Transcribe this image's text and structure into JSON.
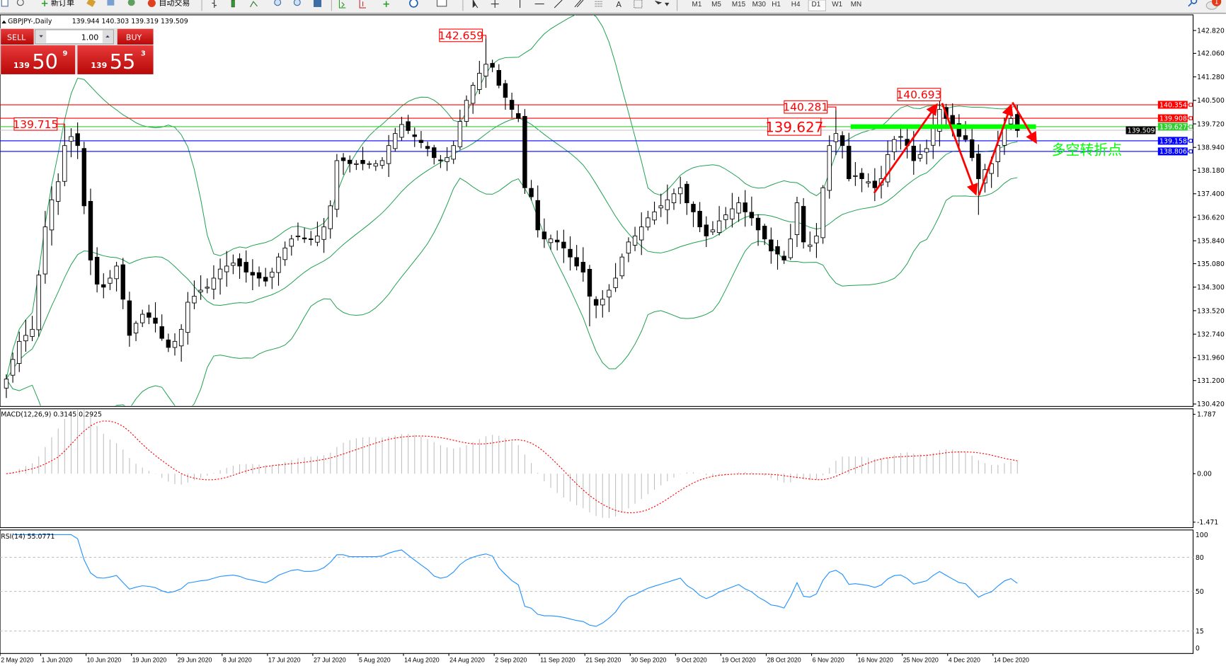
{
  "toolbar": {
    "new_order": "新订单",
    "auto_trading": "自动交易",
    "timeframes": [
      "M1",
      "M5",
      "M15",
      "M30",
      "H1",
      "H4",
      "D1",
      "W1",
      "MN"
    ],
    "active_timeframe": "D1",
    "notification_count": "1",
    "icons": [
      "new-chart-icon",
      "zoom-icon",
      "new-order-icon",
      "market-watch-icon",
      "history-icon",
      "signals-icon",
      "auto-trading-icon",
      "bar-chart-icon",
      "candlestick-icon",
      "line-chart-icon",
      "zoom-in-icon",
      "zoom-out-icon",
      "tile-icon",
      "autoscroll-icon",
      "chart-shift-icon",
      "indicators-icon",
      "period-icon",
      "templates-icon",
      "cursor-icon",
      "crosshair-icon",
      "vertical-line-icon",
      "horizontal-line-icon",
      "trendline-icon",
      "fibonacci-icon",
      "channel-icon",
      "text-icon",
      "text-label-icon",
      "arrows-icon",
      "search-icon",
      "notifications-icon"
    ]
  },
  "chart": {
    "symbol": "GBPJPY-,Daily",
    "ohlc": "139.944 140.303 139.319 139.509",
    "colors": {
      "bands": "#1fa050",
      "bull_fill": "#ffffff",
      "bear_fill": "#000000"
    }
  },
  "trade_panel": {
    "sell_label": "SELL",
    "buy_label": "BUY",
    "lots": "1.00",
    "sell_price": {
      "prefix": "139",
      "main": "50",
      "sup": "9"
    },
    "buy_price": {
      "prefix": "139",
      "main": "55",
      "sup": "3"
    },
    "color": "#d41a1a"
  },
  "price_axis": {
    "ticks": [
      "142.820",
      "142.060",
      "141.280",
      "140.500",
      "139.720",
      "138.940",
      "138.180",
      "137.400",
      "136.620",
      "135.840",
      "135.080",
      "134.300",
      "133.520",
      "132.740",
      "131.960",
      "131.200",
      "130.420"
    ]
  },
  "levels": [
    {
      "price": "140.354",
      "color": "#ff0000"
    },
    {
      "price": "139.908",
      "color": "#ff0000"
    },
    {
      "price": "139.627",
      "color": "#33cc33"
    },
    {
      "price": "139.509",
      "color": "#000000",
      "line": "#c0c0c0"
    },
    {
      "price": "139.158",
      "color": "#0000ff"
    },
    {
      "price": "138.806",
      "color": "#0000ff"
    }
  ],
  "annotations": [
    {
      "text": "142.659",
      "price": 142.659,
      "size": "small"
    },
    {
      "text": "139.715",
      "price": 139.715,
      "size": "small"
    },
    {
      "text": "140.281",
      "price": 140.281,
      "size": "small"
    },
    {
      "text": "139.627",
      "price": 139.627,
      "size": "large"
    },
    {
      "text": "140.693",
      "price": 140.693,
      "size": "small"
    }
  ],
  "note": {
    "text": "多空转折点",
    "color": "#00ff00"
  },
  "macd": {
    "label": "MACD(12,26,9) 0.3145 0.2925",
    "ticks": [
      "1.787",
      "0.00",
      "-1.471"
    ],
    "max": 1.787,
    "min": -1.471,
    "hist_color": "#c0c0c0",
    "signal_color": "#ff0000"
  },
  "rsi": {
    "label": "RSI(14) 55.0771",
    "ticks": [
      "100",
      "80",
      "50",
      "15",
      "0"
    ],
    "levels": [
      80,
      50,
      15
    ],
    "color": "#1e90ff"
  },
  "dates": [
    "2 May 2020",
    "1 Jun 2020",
    "10 Jun 2020",
    "19 Jun 2020",
    "29 Jun 2020",
    "8 Jul 2020",
    "17 Jul 2020",
    "27 Jul 2020",
    "5 Aug 2020",
    "14 Aug 2020",
    "24 Aug 2020",
    "2 Sep 2020",
    "11 Sep 2020",
    "21 Sep 2020",
    "30 Sep 2020",
    "9 Oct 2020",
    "19 Oct 2020",
    "28 Oct 2020",
    "6 Nov 2020",
    "16 Nov 2020",
    "25 Nov 2020",
    "4 Dec 2020",
    "14 Dec 2020"
  ],
  "candles": {
    "closes": [
      131.25,
      131.9,
      132.5,
      132.7,
      132.9,
      134.7,
      136.3,
      137.2,
      137.8,
      139.0,
      139.3,
      139.0,
      137.0,
      135.2,
      134.4,
      134.3,
      134.6,
      135.0,
      133.9,
      132.7,
      133.1,
      133.4,
      133.3,
      133.1,
      132.6,
      132.3,
      132.5,
      132.9,
      133.8,
      134.0,
      134.2,
      134.3,
      134.6,
      134.9,
      135.0,
      135.1,
      135.0,
      134.8,
      134.7,
      134.6,
      134.5,
      134.8,
      135.3,
      135.6,
      135.9,
      136.0,
      135.9,
      135.9,
      136.0,
      136.3,
      137.0,
      138.5,
      138.5,
      138.4,
      138.4,
      138.4,
      138.4,
      138.4,
      138.5,
      139.0,
      139.4,
      139.7,
      139.5,
      139.3,
      139.1,
      138.9,
      138.6,
      138.5,
      138.6,
      139.0,
      139.8,
      140.5,
      141.0,
      141.4,
      141.7,
      141.6,
      141.0,
      140.6,
      140.2,
      139.9,
      137.6,
      137.3,
      136.2,
      135.9,
      135.9,
      135.8,
      135.6,
      135.3,
      135.0,
      134.8,
      134.0,
      133.7,
      133.9,
      134.2,
      134.6,
      135.3,
      135.8,
      136.0,
      136.3,
      136.6,
      136.8,
      137.0,
      137.2,
      137.4,
      137.6,
      137.1,
      136.8,
      136.3,
      136.0,
      136.2,
      136.5,
      136.7,
      136.9,
      137.1,
      136.8,
      136.6,
      136.2,
      135.9,
      135.5,
      135.4,
      135.2,
      135.9,
      137.1,
      135.8,
      135.7,
      136.0,
      137.6,
      139.0,
      139.4,
      139.0,
      137.9,
      138.0,
      137.9,
      137.8,
      137.6,
      137.9,
      138.7,
      139.2,
      139.3,
      139.0,
      138.5,
      138.7,
      138.9,
      139.6,
      140.2,
      139.9,
      139.6,
      139.3,
      139.2,
      138.6,
      137.9,
      138.2,
      138.4,
      139.0,
      139.6,
      139.9,
      139.5
    ]
  }
}
